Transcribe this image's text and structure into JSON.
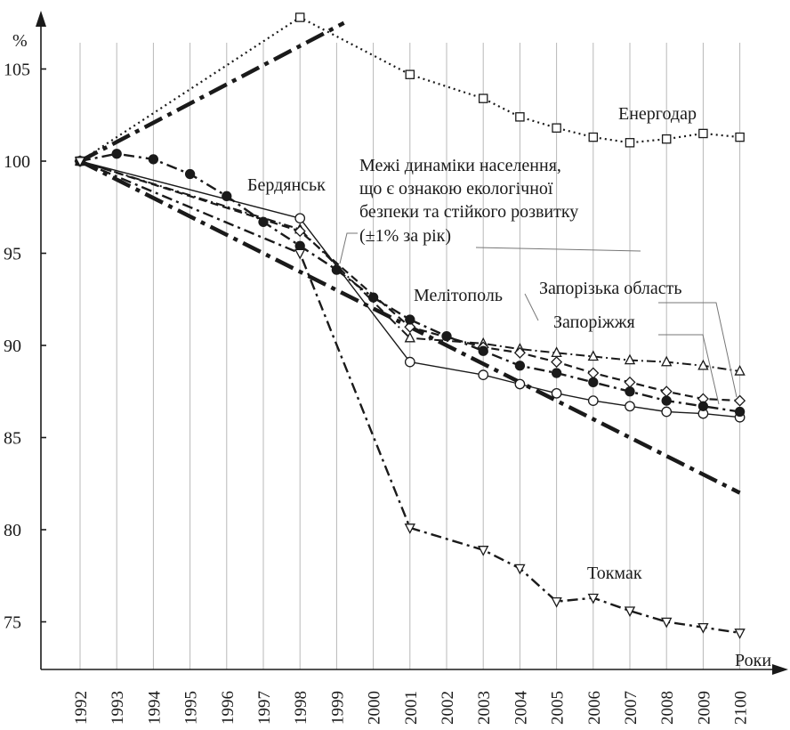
{
  "chart_data": {
    "type": "line",
    "y_unit": "%",
    "x_unit": "Роки",
    "ylim": [
      72,
      108
    ],
    "y_ticks": [
      75,
      80,
      85,
      90,
      95,
      100,
      105
    ],
    "categories": [
      "1992",
      "1993",
      "1994",
      "1995",
      "1996",
      "1997",
      "1998",
      "1999",
      "2000",
      "2001",
      "2002",
      "2003",
      "2004",
      "2005",
      "2006",
      "2007",
      "2008",
      "2009",
      "2100"
    ],
    "grid": "vertical",
    "series": [
      {
        "name": "Енергодар",
        "style": "dotted",
        "marker": "square-open",
        "values": [
          100,
          null,
          null,
          null,
          null,
          null,
          107.8,
          null,
          null,
          104.7,
          null,
          103.4,
          102.4,
          101.8,
          101.3,
          101.0,
          101.2,
          101.5,
          101.3
        ]
      },
      {
        "name": "Бердянськ",
        "style": "solid",
        "marker": "circle-open",
        "values": [
          100,
          null,
          null,
          null,
          null,
          null,
          96.9,
          null,
          null,
          89.1,
          null,
          88.4,
          87.9,
          87.4,
          87.0,
          86.7,
          86.4,
          86.3,
          86.1
        ]
      },
      {
        "name": "Мелітополь",
        "style": "dash-dot-thin",
        "marker": "triangle-open",
        "values": [
          100,
          null,
          null,
          null,
          null,
          null,
          96.3,
          null,
          null,
          90.4,
          null,
          90.1,
          89.8,
          89.6,
          89.4,
          89.2,
          89.1,
          88.9,
          88.6
        ]
      },
      {
        "name": "Запорізька область",
        "style": "dashed",
        "marker": "diamond-open",
        "values": [
          100,
          null,
          null,
          null,
          null,
          null,
          96.2,
          null,
          null,
          91.0,
          null,
          89.9,
          89.6,
          89.1,
          88.5,
          88.0,
          87.5,
          87.1,
          87.0
        ]
      },
      {
        "name": "Запоріжжя",
        "style": "dash-dot",
        "marker": "circle-filled",
        "values": [
          100,
          100.4,
          100.1,
          99.3,
          98.1,
          96.7,
          95.4,
          94.1,
          92.6,
          91.4,
          90.5,
          89.7,
          88.9,
          88.5,
          88.0,
          87.5,
          87.0,
          86.7,
          86.4
        ]
      },
      {
        "name": "Токмак",
        "style": "dash-dot",
        "marker": "triangle-down-open",
        "values": [
          100,
          null,
          null,
          null,
          null,
          null,
          95.0,
          null,
          null,
          80.1,
          null,
          78.9,
          77.9,
          76.1,
          76.3,
          75.6,
          75.0,
          74.7,
          74.4
        ]
      },
      {
        "name": "Межі динаміки населення (+1%)",
        "style": "heavy-dash-dot",
        "marker": "none",
        "points": [
          [
            0,
            100
          ],
          [
            7.2,
            107.5
          ]
        ]
      },
      {
        "name": "Межі динаміки населення (−1%)",
        "style": "heavy-dash-dot",
        "marker": "none",
        "points": [
          [
            0,
            100
          ],
          [
            18,
            82
          ]
        ]
      }
    ],
    "annotations": [
      {
        "text": "Енергодар",
        "kind": "label"
      },
      {
        "text": "Бердянськ",
        "kind": "label"
      },
      {
        "text": "Межі динаміки населення,",
        "kind": "label"
      },
      {
        "text": "що є ознакою екологічної",
        "kind": "label"
      },
      {
        "text": "безпеки та стійкого розвитку",
        "kind": "label"
      },
      {
        "text": "(±1% за рік)",
        "kind": "label"
      },
      {
        "text": "Мелітополь",
        "kind": "label"
      },
      {
        "text": "Запорізька область",
        "kind": "label"
      },
      {
        "text": "Запоріжжя",
        "kind": "label"
      },
      {
        "text": "Токмак",
        "kind": "label"
      }
    ]
  }
}
